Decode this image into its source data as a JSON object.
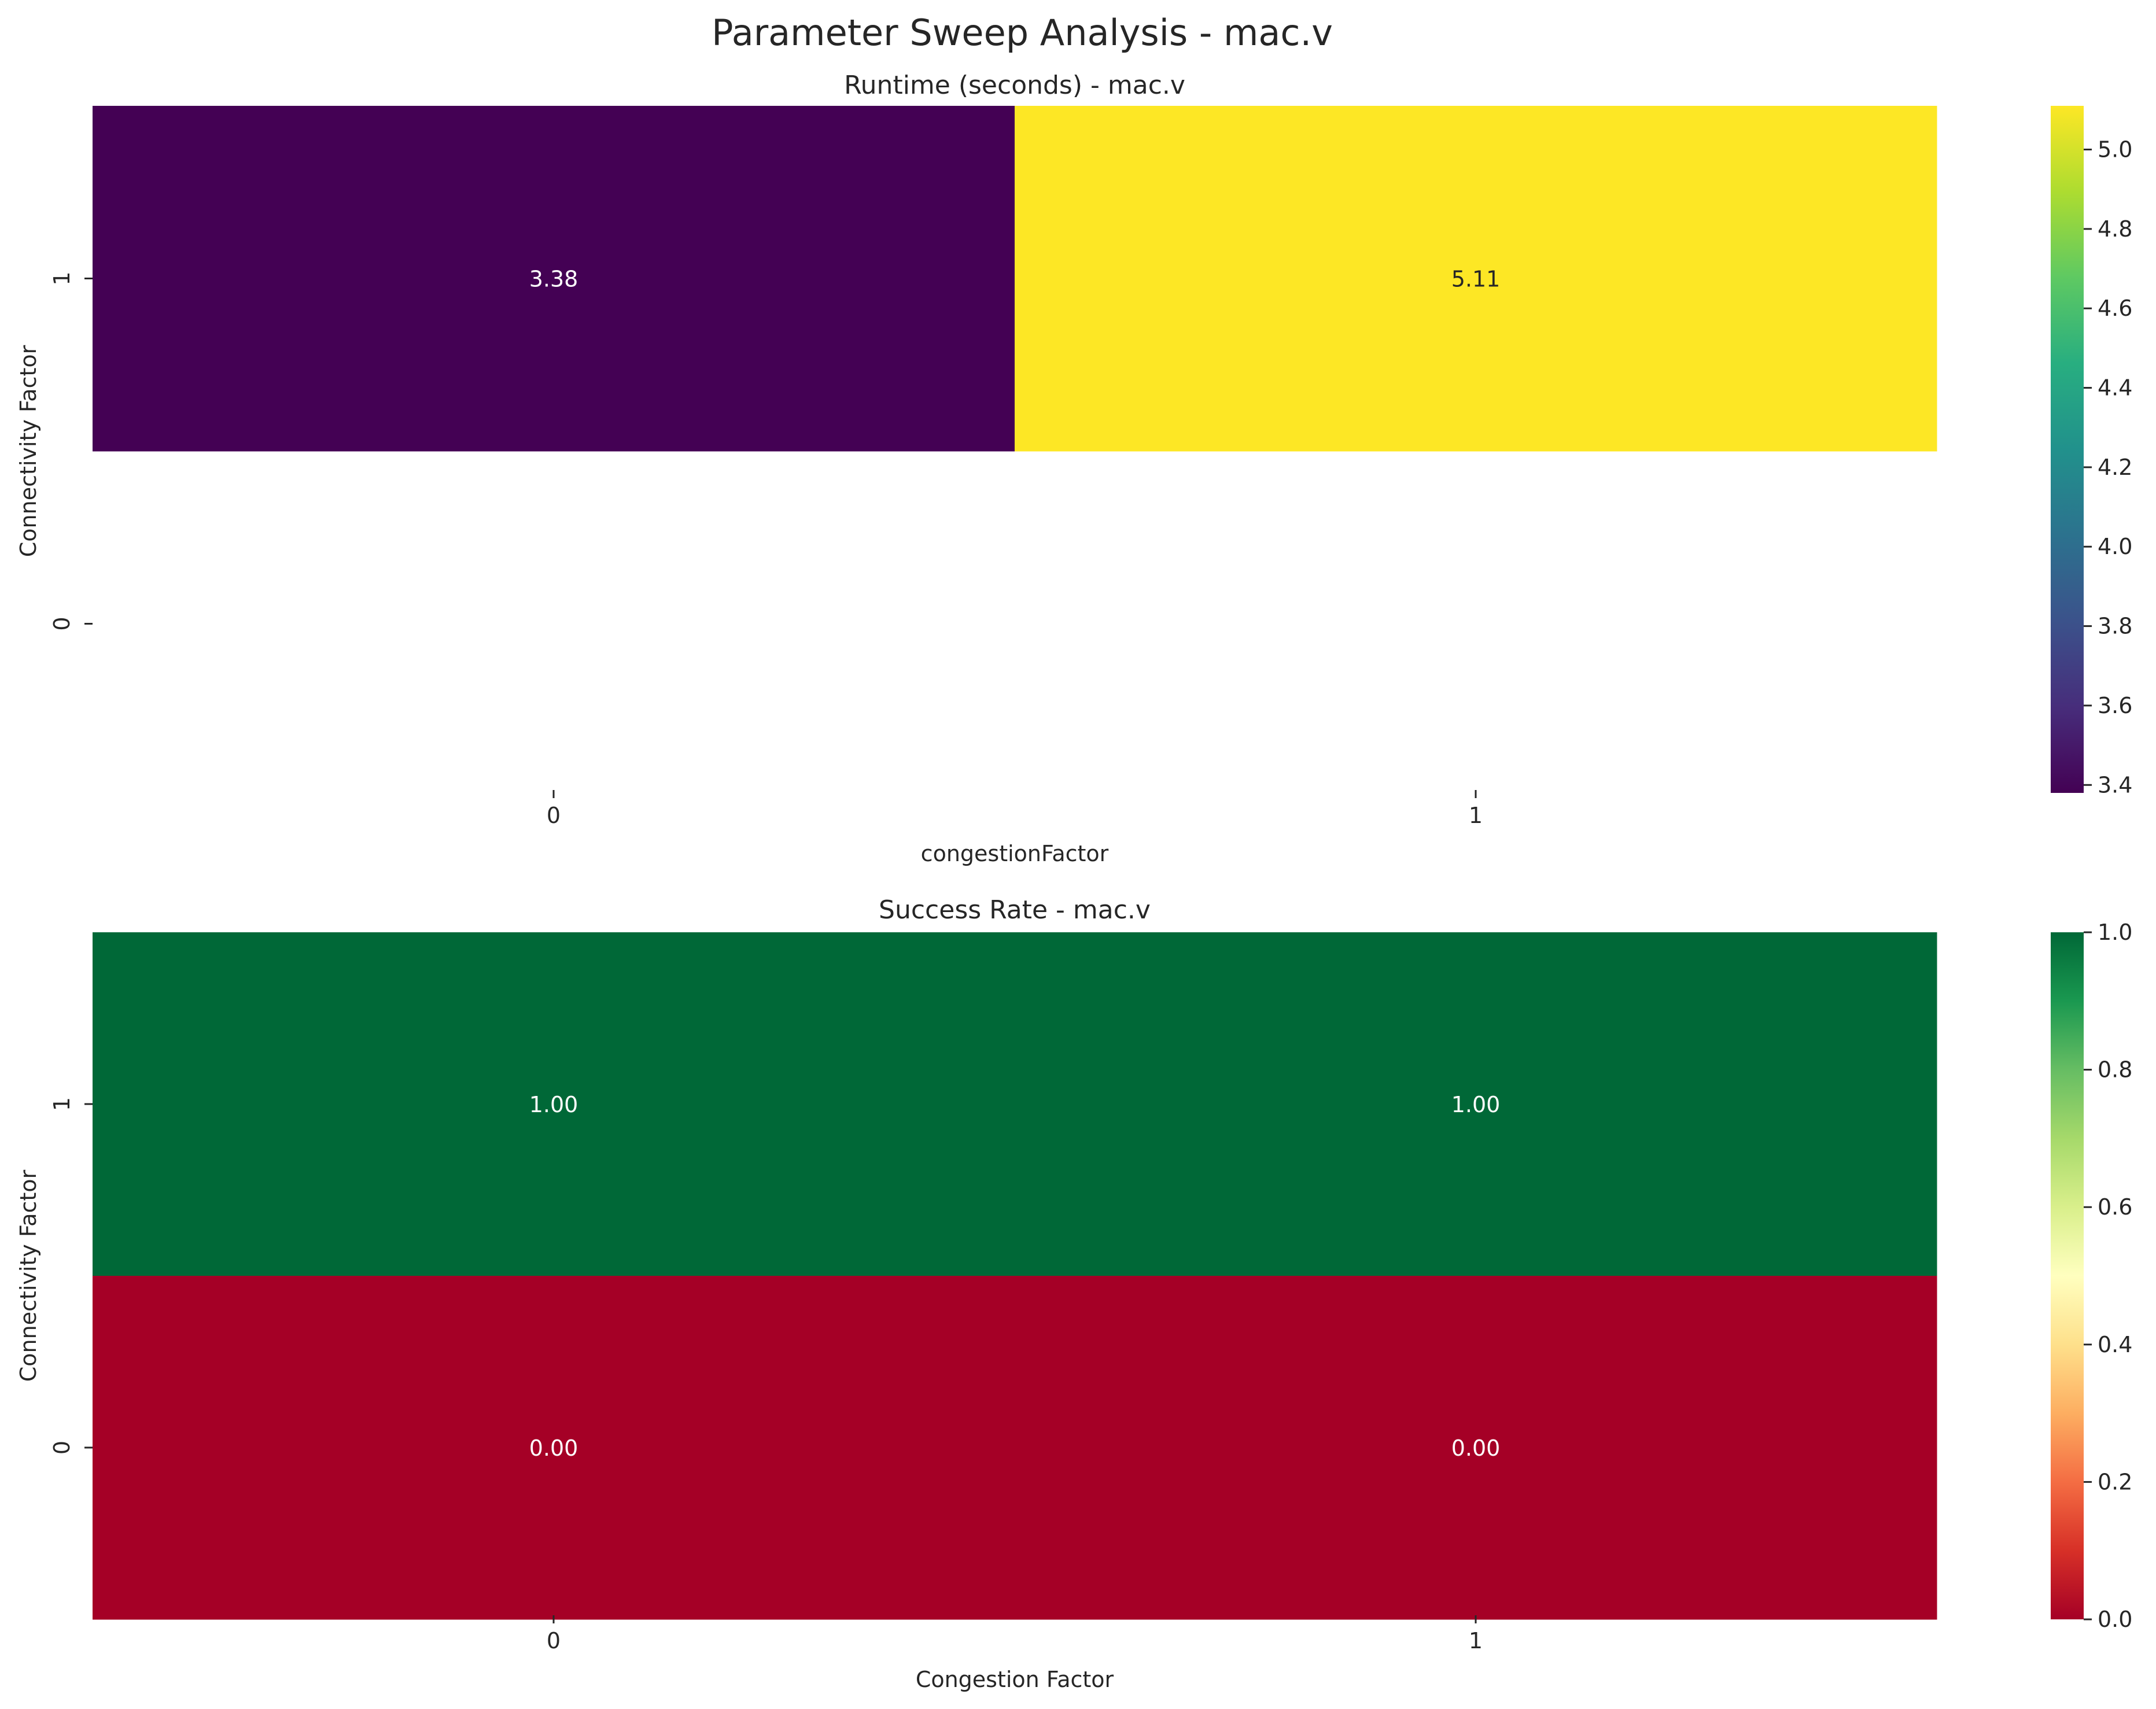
{
  "figure": {
    "suptitle": "Parameter Sweep Analysis - mac.v"
  },
  "chart_data": [
    {
      "type": "heatmap",
      "title": "Runtime (seconds) - mac.v",
      "xlabel": "congestionFactor",
      "ylabel": "Connectivity Factor",
      "x_categories": [
        "0",
        "1"
      ],
      "y_categories": [
        "1",
        "0"
      ],
      "values": [
        [
          3.38,
          5.11
        ],
        [
          null,
          null
        ]
      ],
      "annotations": [
        [
          "3.38",
          "5.11"
        ],
        [
          "",
          ""
        ]
      ],
      "colormap": "viridis",
      "colorbar": {
        "range": [
          3.38,
          5.11
        ],
        "ticks": [
          3.4,
          3.6,
          3.8,
          4.0,
          4.2,
          4.4,
          4.6,
          4.8,
          5.0
        ],
        "tick_labels": [
          "3.4",
          "3.6",
          "3.8",
          "4.0",
          "4.2",
          "4.4",
          "4.6",
          "4.8",
          "5.0"
        ]
      }
    },
    {
      "type": "heatmap",
      "title": "Success Rate - mac.v",
      "xlabel": "Congestion Factor",
      "ylabel": "Connectivity Factor",
      "x_categories": [
        "0",
        "1"
      ],
      "y_categories": [
        "1",
        "0"
      ],
      "values": [
        [
          1.0,
          1.0
        ],
        [
          0.0,
          0.0
        ]
      ],
      "annotations": [
        [
          "1.00",
          "1.00"
        ],
        [
          "0.00",
          "0.00"
        ]
      ],
      "colormap": "RdYlGn",
      "colorbar": {
        "range": [
          0.0,
          1.0
        ],
        "ticks": [
          0.0,
          0.2,
          0.4,
          0.6,
          0.8,
          1.0
        ],
        "tick_labels": [
          "0.0",
          "0.2",
          "0.4",
          "0.6",
          "0.8",
          "1.0"
        ]
      }
    }
  ]
}
